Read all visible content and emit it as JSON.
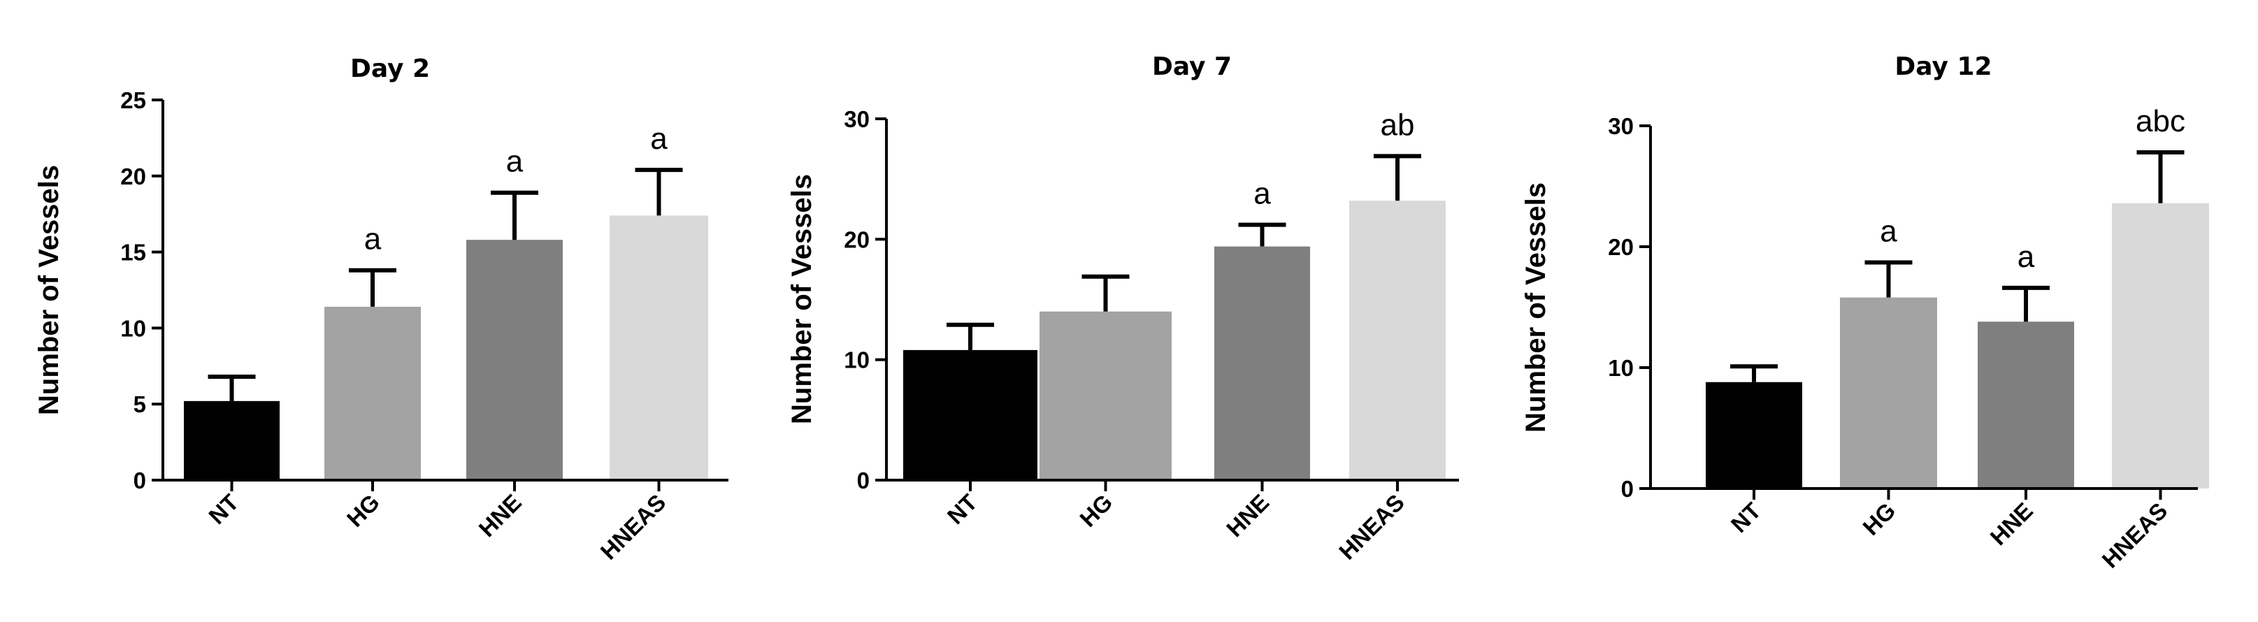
{
  "chart_data": [
    {
      "type": "bar",
      "title": "Day 2",
      "ylabel": "Number of Vessels",
      "xlabel": "",
      "categories": [
        "NT",
        "HG",
        "HNE",
        "HNEAS"
      ],
      "values": [
        5.2,
        11.4,
        15.8,
        17.4
      ],
      "errors": [
        1.6,
        2.4,
        3.1,
        3.0
      ],
      "annotations": [
        "",
        "a",
        "a",
        "a"
      ],
      "ylim": [
        0,
        25
      ],
      "yticks": [
        0,
        5,
        10,
        15,
        20,
        25
      ],
      "colors": [
        "#000000",
        "#a3a3a3",
        "#7f7f7f",
        "#d9d9d9"
      ]
    },
    {
      "type": "bar",
      "title": "Day 7",
      "ylabel": "Number of Vessels",
      "xlabel": "",
      "categories": [
        "NT",
        "HG",
        "HNE",
        "HNEAS"
      ],
      "values": [
        10.8,
        14.0,
        19.4,
        23.2
      ],
      "errors": [
        2.1,
        2.9,
        1.8,
        3.7
      ],
      "annotations": [
        "",
        "",
        "a",
        "ab"
      ],
      "ylim": [
        0,
        30
      ],
      "yticks": [
        0,
        10,
        20,
        30
      ],
      "colors": [
        "#000000",
        "#a3a3a3",
        "#7f7f7f",
        "#d9d9d9"
      ]
    },
    {
      "type": "bar",
      "title": "Day 12",
      "ylabel": "Number of Vessels",
      "xlabel": "",
      "categories": [
        "NT",
        "HG",
        "HNE",
        "HNEAS"
      ],
      "values": [
        8.8,
        15.8,
        13.8,
        23.6
      ],
      "errors": [
        1.3,
        2.9,
        2.8,
        4.2
      ],
      "annotations": [
        "",
        "a",
        "a",
        "abc"
      ],
      "ylim": [
        0,
        30
      ],
      "yticks": [
        0,
        10,
        20,
        30
      ],
      "colors": [
        "#000000",
        "#a3a3a3",
        "#7f7f7f",
        "#d9d9d9"
      ]
    }
  ]
}
